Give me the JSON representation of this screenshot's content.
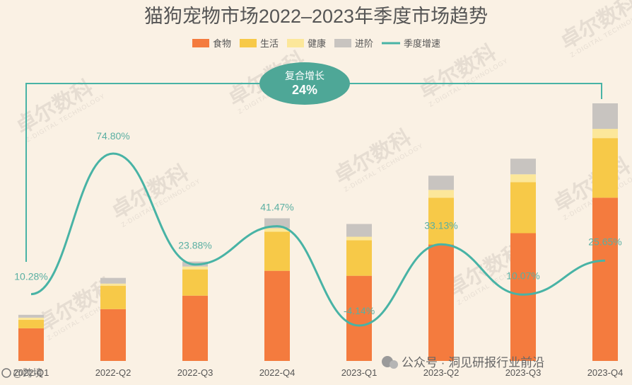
{
  "chart_data": {
    "type": "bar",
    "title": "猫狗宠物市场2022–2023年季度市场趋势",
    "categories": [
      "2022-Q1",
      "2022-Q2",
      "2022-Q3",
      "2022-Q4",
      "2023-Q1",
      "2023-Q2",
      "2023-Q3",
      "2023-Q4"
    ],
    "stacked": true,
    "series": [
      {
        "name": "食物",
        "color": "#F47B3E",
        "values": [
          46,
          73,
          92,
          127,
          120,
          164,
          180,
          230
        ]
      },
      {
        "name": "生活",
        "color": "#F7C948",
        "values": [
          12,
          33,
          37,
          55,
          50,
          66,
          72,
          84
        ]
      },
      {
        "name": "健康",
        "color": "#FCE79A",
        "values": [
          3,
          3,
          4,
          5,
          5,
          11,
          11,
          13
        ]
      },
      {
        "name": "进阶",
        "color": "#C8C4C0",
        "values": [
          4,
          8,
          7,
          14,
          18,
          20,
          22,
          36
        ]
      }
    ],
    "line_series": {
      "name": "季度增速",
      "color": "#48B3A5",
      "values": [
        10.28,
        74.8,
        23.88,
        41.47,
        -4.14,
        33.13,
        10.07,
        25.65
      ],
      "labels": [
        "10.28%",
        "74.80%",
        "23.88%",
        "41.47%",
        "-4.14%",
        "33.13%",
        "10.07%",
        "25.65%"
      ]
    },
    "annotation": {
      "label": "复合增长",
      "value": "24%"
    },
    "legend_position": "top-center",
    "grid": false
  },
  "watermark": {
    "text": "卓尔数科",
    "subtext": "Z-DIGITAL TECHNOLOGY"
  },
  "footer": {
    "source": "公众号 · 洞见研报行业前沿",
    "corner": "@跨境"
  }
}
